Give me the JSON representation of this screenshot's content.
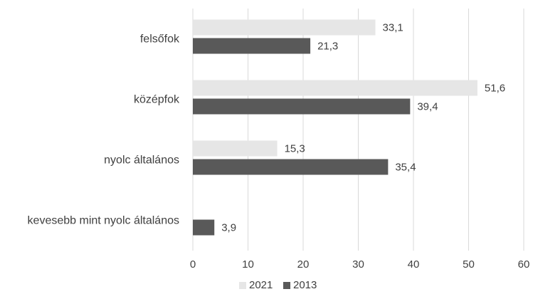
{
  "chart_data": {
    "type": "bar",
    "orientation": "horizontal",
    "title": "",
    "xlabel": "",
    "ylabel": "",
    "categories": [
      "felsőfok",
      "középfok",
      "nyolc általános",
      "kevesebb mint nyolc általános"
    ],
    "series": [
      {
        "name": "2021",
        "values": [
          33.1,
          51.6,
          15.3,
          null
        ],
        "labels": [
          "33,1",
          "51,6",
          "15,3",
          ""
        ],
        "color": "#e6e6e6"
      },
      {
        "name": "2013",
        "values": [
          21.3,
          39.4,
          35.4,
          3.9
        ],
        "labels": [
          "21,3",
          "39,4",
          "35,4",
          "3,9"
        ],
        "color": "#595959"
      }
    ],
    "xlim": [
      0,
      60
    ],
    "ticks": [
      "0",
      "10",
      "20",
      "30",
      "40",
      "50",
      "60"
    ],
    "grid": true,
    "legend": "bottom-center"
  },
  "colors": {
    "grid": "#d9d9d9",
    "text": "#404040"
  }
}
